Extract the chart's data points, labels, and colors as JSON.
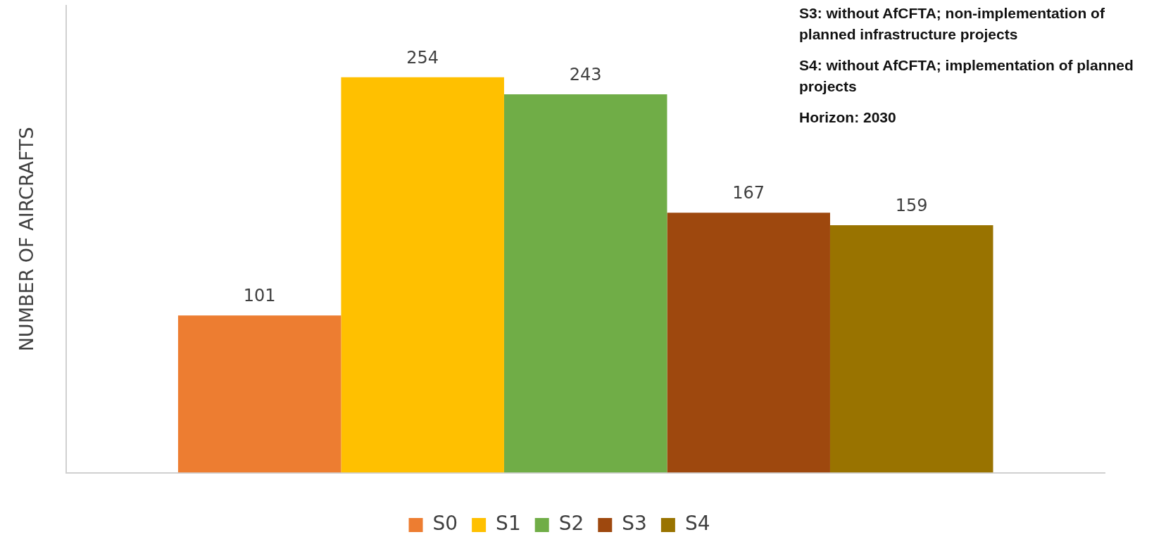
{
  "chart_data": {
    "type": "bar",
    "ylabel": "NUMBER OF AIRCRAFTS",
    "categories": [
      null
    ],
    "series": [
      {
        "name": "S0",
        "color": "#ed7d31",
        "values": [
          101
        ]
      },
      {
        "name": "S1",
        "color": "#ffc000",
        "values": [
          254
        ]
      },
      {
        "name": "S2",
        "color": "#70ad47",
        "values": [
          243
        ]
      },
      {
        "name": "S3",
        "color": "#9e480e",
        "values": [
          167
        ]
      },
      {
        "name": "S4",
        "color": "#997300",
        "values": [
          159
        ]
      }
    ],
    "data_labels": true,
    "legend": "bottom",
    "grid": false,
    "annotations": [
      "S3: without AfCFTA; non-implementation of planned infrastructure projects",
      "S4: without AfCFTA; implementation of planned projects",
      "Horizon: 2030"
    ]
  }
}
